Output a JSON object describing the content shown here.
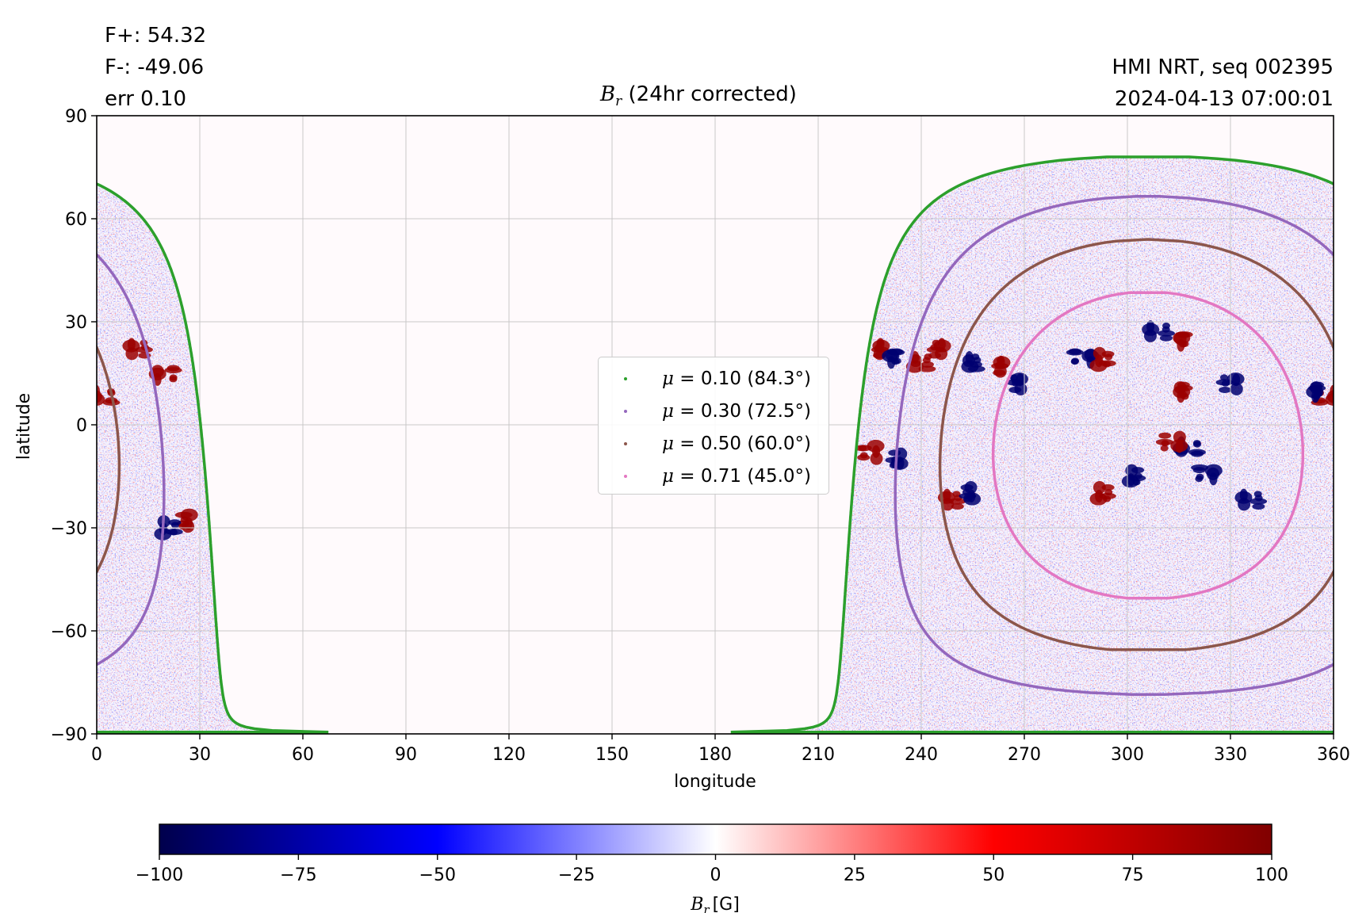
{
  "header": {
    "flux_pos": "F+: 54.32",
    "flux_neg": "F-: -49.06",
    "err": "err 0.10",
    "source": "HMI NRT, seq 002395",
    "datetime": "2024-04-13 07:00:01"
  },
  "chart_data": {
    "type": "heatmap",
    "title": {
      "symbol": "B",
      "sub": "r",
      "text": " (24hr corrected)"
    },
    "xlabel": "longitude",
    "ylabel": "latitude",
    "xlim": [
      0,
      360
    ],
    "ylim": [
      -90,
      90
    ],
    "xticks": [
      0,
      30,
      60,
      90,
      120,
      150,
      180,
      210,
      240,
      270,
      300,
      330,
      360
    ],
    "yticks": [
      -90,
      -60,
      -30,
      0,
      30,
      60,
      90
    ],
    "ytick_labels": [
      "−90",
      "−60",
      "−30",
      "0",
      "30",
      "60",
      "90"
    ],
    "grid": true,
    "disk_center_lon": 306,
    "disk_center_lat": -6,
    "contours": [
      {
        "mu": 0.1,
        "angle_deg": 84.3,
        "color": "#2ca02c",
        "label": "= 0.10 (84.3°)"
      },
      {
        "mu": 0.3,
        "angle_deg": 72.5,
        "color": "#9467bd",
        "label": "= 0.30 (72.5°)"
      },
      {
        "mu": 0.5,
        "angle_deg": 60.0,
        "color": "#8c564b",
        "label": "= 0.50 (60.0°)"
      },
      {
        "mu": 0.71,
        "angle_deg": 45.0,
        "color": "#e377c2",
        "label": "= 0.71 (45.0°)"
      }
    ],
    "legend_placement": "center",
    "active_regions": [
      {
        "lon": 228,
        "lat": 22,
        "sign": 1
      },
      {
        "lon": 232,
        "lat": 20,
        "sign": -1
      },
      {
        "lon": 225,
        "lat": -8,
        "sign": 1
      },
      {
        "lon": 233,
        "lat": -10,
        "sign": -1
      },
      {
        "lon": 240,
        "lat": 18,
        "sign": 1
      },
      {
        "lon": 255,
        "lat": 18,
        "sign": -1
      },
      {
        "lon": 263,
        "lat": 17,
        "sign": 1
      },
      {
        "lon": 249,
        "lat": -22,
        "sign": 1
      },
      {
        "lon": 254,
        "lat": -20,
        "sign": -1
      },
      {
        "lon": 287,
        "lat": 20,
        "sign": -1
      },
      {
        "lon": 293,
        "lat": 19,
        "sign": 1
      },
      {
        "lon": 309,
        "lat": 27,
        "sign": -1
      },
      {
        "lon": 316,
        "lat": 25,
        "sign": 1
      },
      {
        "lon": 316,
        "lat": 10,
        "sign": 1
      },
      {
        "lon": 318,
        "lat": -7,
        "sign": -1
      },
      {
        "lon": 313,
        "lat": -5,
        "sign": 1
      },
      {
        "lon": 293,
        "lat": -20,
        "sign": 1
      },
      {
        "lon": 302,
        "lat": -15,
        "sign": -1
      },
      {
        "lon": 323,
        "lat": -14,
        "sign": -1
      },
      {
        "lon": 358,
        "lat": 8,
        "sign": 1
      },
      {
        "lon": 355,
        "lat": 10,
        "sign": -1
      },
      {
        "lon": 12,
        "lat": 22,
        "sign": 1
      },
      {
        "lon": 20,
        "lat": 15,
        "sign": 1
      },
      {
        "lon": 2,
        "lat": 8,
        "sign": 1
      },
      {
        "lon": 26,
        "lat": -28,
        "sign": 1
      },
      {
        "lon": 21,
        "lat": -30,
        "sign": -1
      },
      {
        "lon": 245,
        "lat": 22,
        "sign": 1
      },
      {
        "lon": 268,
        "lat": 12,
        "sign": -1
      },
      {
        "lon": 336,
        "lat": -22,
        "sign": -1
      },
      {
        "lon": 330,
        "lat": 12,
        "sign": -1
      }
    ]
  },
  "colorbar": {
    "min": -100,
    "max": 100,
    "ticks": [
      -100,
      -75,
      -50,
      -25,
      0,
      25,
      50,
      75,
      100
    ],
    "tick_labels": [
      "−100",
      "−75",
      "−50",
      "−25",
      "0",
      "25",
      "50",
      "75",
      "100"
    ],
    "label": {
      "symbol": "B",
      "sub": "r",
      "unit": "[G]"
    },
    "colors": [
      "#00004c",
      "#0000ff",
      "#ffffff",
      "#ff0000",
      "#800000"
    ]
  }
}
